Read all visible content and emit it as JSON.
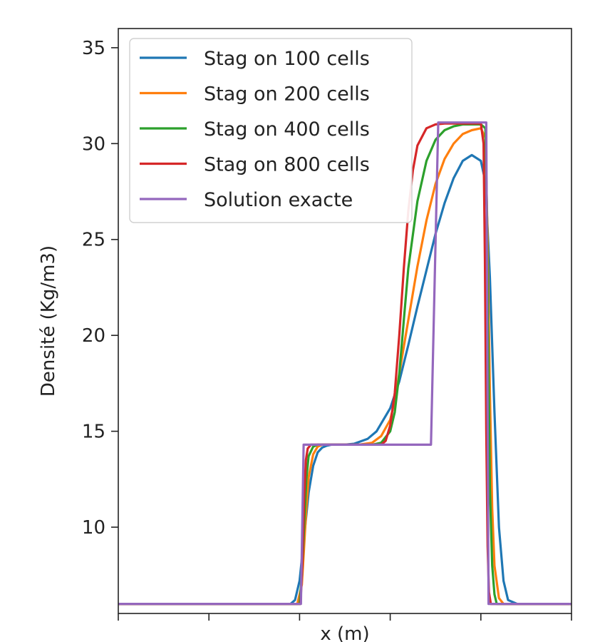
{
  "chart_data": {
    "type": "line",
    "title": "",
    "xlabel": "x (m)",
    "ylabel": "Densité (Kg/m3)",
    "xlim": [
      0,
      1
    ],
    "ylim": [
      5.5,
      36
    ],
    "yticks": [
      10,
      15,
      20,
      25,
      30,
      35
    ],
    "xticks": [
      0.0,
      0.2,
      0.4,
      0.6,
      0.8,
      1.0
    ],
    "xtick_labels_visible": false,
    "grid": false,
    "legend": "top-left",
    "series": [
      {
        "name": "Stag on 100 cells",
        "color": "#1f77b4",
        "x": [
          0,
          0.38,
          0.39,
          0.4,
          0.41,
          0.42,
          0.43,
          0.44,
          0.45,
          0.46,
          0.47,
          0.48,
          0.5,
          0.52,
          0.55,
          0.57,
          0.6,
          0.62,
          0.64,
          0.66,
          0.68,
          0.7,
          0.71,
          0.72,
          0.74,
          0.76,
          0.78,
          0.8,
          0.81,
          0.82,
          0.83,
          0.84,
          0.85,
          0.86,
          0.88,
          1.0
        ],
        "y": [
          6.0,
          6.0,
          6.2,
          7.2,
          9.5,
          11.8,
          13.2,
          13.9,
          14.15,
          14.25,
          14.3,
          14.3,
          14.3,
          14.35,
          14.6,
          15.0,
          16.2,
          17.6,
          19.5,
          21.5,
          23.4,
          25.3,
          26.1,
          26.9,
          28.2,
          29.1,
          29.4,
          29.1,
          28.0,
          23.0,
          16.0,
          10.0,
          7.2,
          6.2,
          6.0,
          6.0
        ]
      },
      {
        "name": "Stag on 200 cells",
        "color": "#ff7f0e",
        "x": [
          0,
          0.395,
          0.405,
          0.41,
          0.415,
          0.42,
          0.43,
          0.44,
          0.45,
          0.47,
          0.5,
          0.53,
          0.56,
          0.58,
          0.6,
          0.61,
          0.62,
          0.64,
          0.66,
          0.68,
          0.7,
          0.72,
          0.74,
          0.76,
          0.78,
          0.8,
          0.81,
          0.815,
          0.82,
          0.825,
          0.83,
          0.84,
          0.85,
          1.0
        ],
        "y": [
          6.0,
          6.0,
          7.0,
          9.0,
          11.0,
          12.6,
          13.8,
          14.2,
          14.3,
          14.3,
          14.3,
          14.3,
          14.4,
          14.75,
          15.6,
          16.6,
          18.0,
          20.8,
          23.6,
          26.0,
          27.9,
          29.2,
          30.0,
          30.5,
          30.7,
          30.8,
          30.3,
          25.0,
          17.0,
          11.0,
          8.0,
          6.3,
          6.0,
          6.0
        ]
      },
      {
        "name": "Stag on 400 cells",
        "color": "#2ca02c",
        "x": [
          0,
          0.4,
          0.405,
          0.41,
          0.415,
          0.42,
          0.43,
          0.44,
          0.5,
          0.56,
          0.58,
          0.6,
          0.61,
          0.62,
          0.63,
          0.64,
          0.66,
          0.68,
          0.7,
          0.72,
          0.74,
          0.76,
          0.78,
          0.8,
          0.81,
          0.813,
          0.816,
          0.82,
          0.825,
          0.83,
          0.835,
          1.0
        ],
        "y": [
          6.0,
          6.0,
          7.5,
          10.0,
          12.5,
          13.7,
          14.2,
          14.3,
          14.3,
          14.3,
          14.4,
          15.0,
          16.0,
          18.0,
          20.8,
          23.5,
          27.0,
          29.1,
          30.2,
          30.7,
          30.9,
          31.0,
          31.0,
          31.0,
          30.8,
          27.0,
          20.0,
          12.0,
          8.0,
          6.5,
          6.0,
          6.0
        ]
      },
      {
        "name": "Stag on 800 cells",
        "color": "#d62728",
        "x": [
          0,
          0.402,
          0.406,
          0.41,
          0.414,
          0.418,
          0.425,
          0.43,
          0.5,
          0.58,
          0.59,
          0.6,
          0.61,
          0.62,
          0.63,
          0.64,
          0.65,
          0.66,
          0.68,
          0.7,
          0.72,
          0.76,
          0.8,
          0.806,
          0.809,
          0.812,
          0.815,
          0.818,
          0.822,
          1.0
        ],
        "y": [
          6.0,
          6.0,
          8.0,
          11.5,
          13.5,
          14.1,
          14.3,
          14.3,
          14.3,
          14.3,
          14.5,
          15.3,
          17.0,
          20.0,
          23.5,
          26.5,
          28.6,
          29.9,
          30.8,
          31.0,
          31.05,
          31.05,
          31.05,
          30.0,
          24.0,
          15.0,
          9.0,
          6.6,
          6.0,
          6.0
        ]
      },
      {
        "name": "Solution exacte",
        "color": "#9467bd",
        "x": [
          0,
          0.403,
          0.409,
          0.69,
          0.706,
          0.812,
          0.817,
          1.0
        ],
        "y": [
          6.0,
          6.0,
          14.3,
          14.3,
          31.1,
          31.1,
          6.0,
          6.0
        ]
      }
    ]
  }
}
